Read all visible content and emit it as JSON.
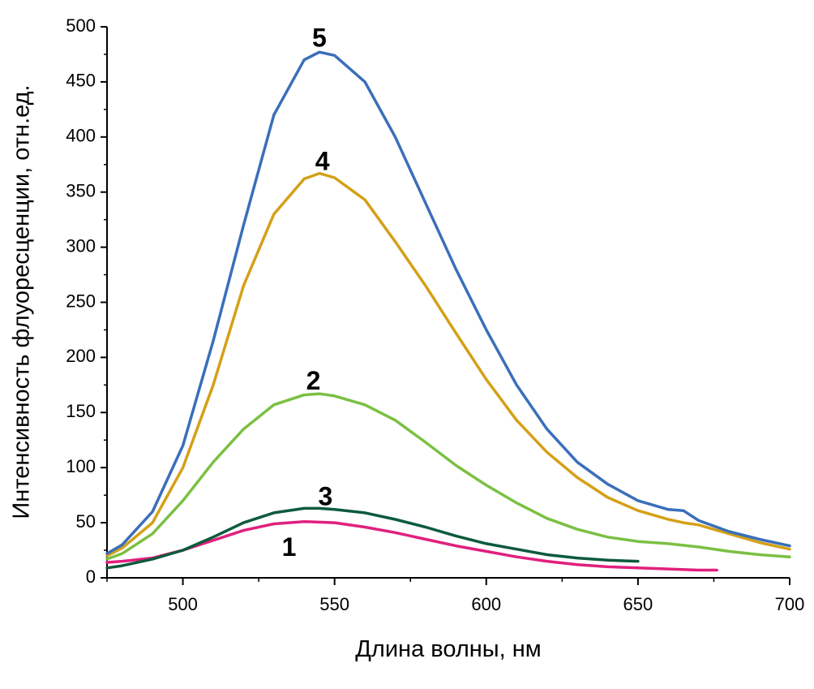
{
  "chart_data": {
    "type": "line",
    "title": "",
    "xlabel": "Длина волны, нм",
    "ylabel": "Интенсивность флуоресценции, отн.ед.",
    "xlim": [
      475,
      700
    ],
    "ylim": [
      0,
      500
    ],
    "x_ticks": [
      500,
      550,
      600,
      650,
      700
    ],
    "y_ticks": [
      0,
      50,
      100,
      150,
      200,
      250,
      300,
      350,
      400,
      450,
      500
    ],
    "series": [
      {
        "name": "1",
        "color": "#e0207e",
        "label_at": [
          535,
          20
        ],
        "points": [
          [
            475,
            14
          ],
          [
            480,
            15
          ],
          [
            490,
            18
          ],
          [
            500,
            25
          ],
          [
            510,
            34
          ],
          [
            520,
            43
          ],
          [
            530,
            49
          ],
          [
            540,
            51
          ],
          [
            550,
            50
          ],
          [
            560,
            46
          ],
          [
            570,
            41
          ],
          [
            580,
            35
          ],
          [
            590,
            29
          ],
          [
            600,
            24
          ],
          [
            610,
            19
          ],
          [
            620,
            15
          ],
          [
            630,
            12
          ],
          [
            640,
            10
          ],
          [
            650,
            9
          ],
          [
            660,
            8
          ],
          [
            670,
            7
          ],
          [
            676,
            7
          ]
        ]
      },
      {
        "name": "2",
        "color": "#7bc043",
        "label_at": [
          543,
          171
        ],
        "points": [
          [
            475,
            17
          ],
          [
            480,
            22
          ],
          [
            490,
            40
          ],
          [
            500,
            70
          ],
          [
            510,
            105
          ],
          [
            520,
            135
          ],
          [
            530,
            157
          ],
          [
            540,
            166
          ],
          [
            545,
            167
          ],
          [
            550,
            165
          ],
          [
            560,
            157
          ],
          [
            570,
            143
          ],
          [
            580,
            123
          ],
          [
            590,
            102
          ],
          [
            600,
            84
          ],
          [
            610,
            68
          ],
          [
            620,
            54
          ],
          [
            630,
            44
          ],
          [
            640,
            37
          ],
          [
            650,
            33
          ],
          [
            660,
            31
          ],
          [
            670,
            28
          ],
          [
            680,
            24
          ],
          [
            690,
            21
          ],
          [
            700,
            19
          ]
        ]
      },
      {
        "name": "3",
        "color": "#0d5a3c",
        "label_at": [
          547,
          66
        ],
        "points": [
          [
            475,
            9
          ],
          [
            480,
            11
          ],
          [
            490,
            17
          ],
          [
            500,
            25
          ],
          [
            510,
            37
          ],
          [
            520,
            50
          ],
          [
            530,
            59
          ],
          [
            540,
            63
          ],
          [
            545,
            63
          ],
          [
            550,
            62
          ],
          [
            560,
            59
          ],
          [
            570,
            53
          ],
          [
            580,
            46
          ],
          [
            590,
            38
          ],
          [
            600,
            31
          ],
          [
            610,
            26
          ],
          [
            620,
            21
          ],
          [
            630,
            18
          ],
          [
            640,
            16
          ],
          [
            650,
            15
          ]
        ]
      },
      {
        "name": "4",
        "color": "#d4a017",
        "label_at": [
          546,
          370
        ],
        "points": [
          [
            475,
            20
          ],
          [
            480,
            27
          ],
          [
            490,
            50
          ],
          [
            500,
            100
          ],
          [
            510,
            175
          ],
          [
            520,
            265
          ],
          [
            530,
            330
          ],
          [
            540,
            362
          ],
          [
            545,
            367
          ],
          [
            550,
            363
          ],
          [
            560,
            343
          ],
          [
            570,
            305
          ],
          [
            580,
            265
          ],
          [
            590,
            222
          ],
          [
            600,
            180
          ],
          [
            610,
            143
          ],
          [
            620,
            114
          ],
          [
            630,
            91
          ],
          [
            640,
            73
          ],
          [
            650,
            61
          ],
          [
            660,
            53
          ],
          [
            665,
            50
          ],
          [
            670,
            48
          ],
          [
            680,
            40
          ],
          [
            690,
            32
          ],
          [
            700,
            26
          ]
        ]
      },
      {
        "name": "5",
        "color": "#3a6fba",
        "label_at": [
          545,
          482
        ],
        "points": [
          [
            475,
            22
          ],
          [
            480,
            30
          ],
          [
            490,
            60
          ],
          [
            500,
            120
          ],
          [
            510,
            215
          ],
          [
            520,
            320
          ],
          [
            530,
            420
          ],
          [
            540,
            470
          ],
          [
            545,
            477
          ],
          [
            550,
            474
          ],
          [
            560,
            450
          ],
          [
            570,
            400
          ],
          [
            580,
            340
          ],
          [
            590,
            280
          ],
          [
            600,
            225
          ],
          [
            610,
            175
          ],
          [
            620,
            135
          ],
          [
            630,
            105
          ],
          [
            640,
            85
          ],
          [
            650,
            70
          ],
          [
            660,
            62
          ],
          [
            665,
            61
          ],
          [
            670,
            52
          ],
          [
            680,
            42
          ],
          [
            690,
            35
          ],
          [
            700,
            29
          ]
        ]
      }
    ]
  }
}
